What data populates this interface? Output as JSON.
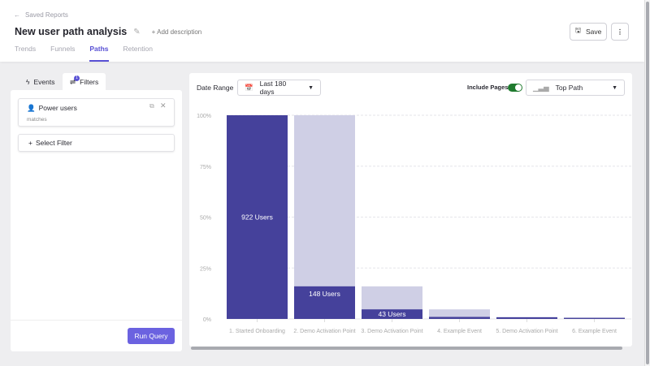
{
  "header": {
    "back_label": "Saved Reports",
    "title": "New user path analysis",
    "add_description": "Add description",
    "save_label": "Save",
    "tabs": [
      {
        "label": "Trends"
      },
      {
        "label": "Funnels"
      },
      {
        "label": "Paths"
      },
      {
        "label": "Retention"
      }
    ],
    "active_tab": "Paths"
  },
  "left_panel": {
    "tabs": [
      {
        "label": "Events"
      },
      {
        "label": "Filters"
      }
    ],
    "active_tab": "Filters",
    "filter_badge": "1",
    "filter_card": {
      "name": "Power users",
      "operator": "matches"
    },
    "select_filter": "Select Filter",
    "run_query": "Run Query"
  },
  "controls": {
    "date_range_label": "Date Range",
    "date_range_value": "Last 180 days",
    "include_pages_label": "Include Pages",
    "include_pages_on": true,
    "path_type": "Top Path"
  },
  "colors": {
    "accent": "#5850d4",
    "bar_dark": "#45419b",
    "bar_light": "#cfcfe5",
    "toggle": "#1f7a2e"
  },
  "chart_data": {
    "type": "bar",
    "ylim": [
      0,
      100
    ],
    "y_ticks": [
      "0%",
      "25%",
      "50%",
      "75%",
      "100%"
    ],
    "categories": [
      "1. Started Onboarding",
      "2. Demo Activation Point",
      "3. Demo Activation Point",
      "4. Example Event",
      "5. Demo Activation Point",
      "6. Example Event"
    ],
    "series": [
      {
        "values": [
          100,
          100,
          16,
          4.7,
          1,
          0.8
        ]
      },
      {
        "values": [
          100,
          16,
          4.7,
          1,
          0.8,
          0.5
        ]
      }
    ],
    "data_labels": [
      "922 Users",
      "148 Users",
      "43 Users",
      "",
      "",
      ""
    ],
    "grid": true
  }
}
